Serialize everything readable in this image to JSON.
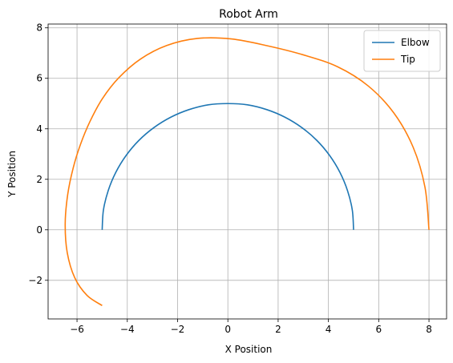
{
  "chart_data": {
    "type": "line",
    "title": "Robot Arm",
    "xlabel": "X Position",
    "ylabel": "Y Position",
    "xlim": [
      -7.15,
      8.7
    ],
    "ylim": [
      -3.53,
      8.15
    ],
    "xticks": [
      -6,
      -4,
      -2,
      0,
      2,
      4,
      6,
      8
    ],
    "xtick_labels": [
      "−6",
      "−4",
      "−2",
      "0",
      "2",
      "4",
      "6",
      "8"
    ],
    "yticks": [
      -2,
      0,
      2,
      4,
      6,
      8
    ],
    "ytick_labels": [
      "−2",
      "0",
      "2",
      "4",
      "6",
      "8"
    ],
    "grid": true,
    "legend_position": "top-right",
    "colors": {
      "elbow": "#1f77b4",
      "tip": "#ff7f0e"
    },
    "series": [
      {
        "name": "Elbow",
        "color": "#1f77b4",
        "x": [
          5.0,
          4.95,
          4.76,
          4.46,
          4.05,
          3.54,
          2.94,
          2.27,
          1.55,
          0.78,
          0.0,
          -0.78,
          -1.55,
          -2.27,
          -2.94,
          -3.54,
          -4.05,
          -4.46,
          -4.76,
          -4.95,
          -5.0
        ],
        "y": [
          0.0,
          0.78,
          1.55,
          2.27,
          2.94,
          3.54,
          4.05,
          4.46,
          4.76,
          4.95,
          5.0,
          4.95,
          4.76,
          4.46,
          4.05,
          3.54,
          2.94,
          2.27,
          1.55,
          0.78,
          0.0
        ]
      },
      {
        "name": "Tip",
        "color": "#ff7f0e",
        "x": [
          8.0,
          7.84,
          7.37,
          6.6,
          5.58,
          4.36,
          3.0,
          1.57,
          0.14,
          -1.21,
          -2.43,
          -3.48,
          -4.34,
          -5.0,
          -5.49,
          -5.86,
          -6.15,
          -6.37,
          -6.47,
          -6.39,
          -6.09,
          -5.6,
          -5.0
        ],
        "y": [
          0.0,
          1.69,
          3.27,
          4.63,
          5.7,
          6.46,
          6.93,
          7.29,
          7.56,
          7.58,
          7.3,
          6.76,
          6.02,
          5.18,
          4.28,
          3.39,
          2.46,
          1.4,
          0.25,
          -0.9,
          -1.9,
          -2.6,
          -3.0
        ]
      }
    ]
  }
}
